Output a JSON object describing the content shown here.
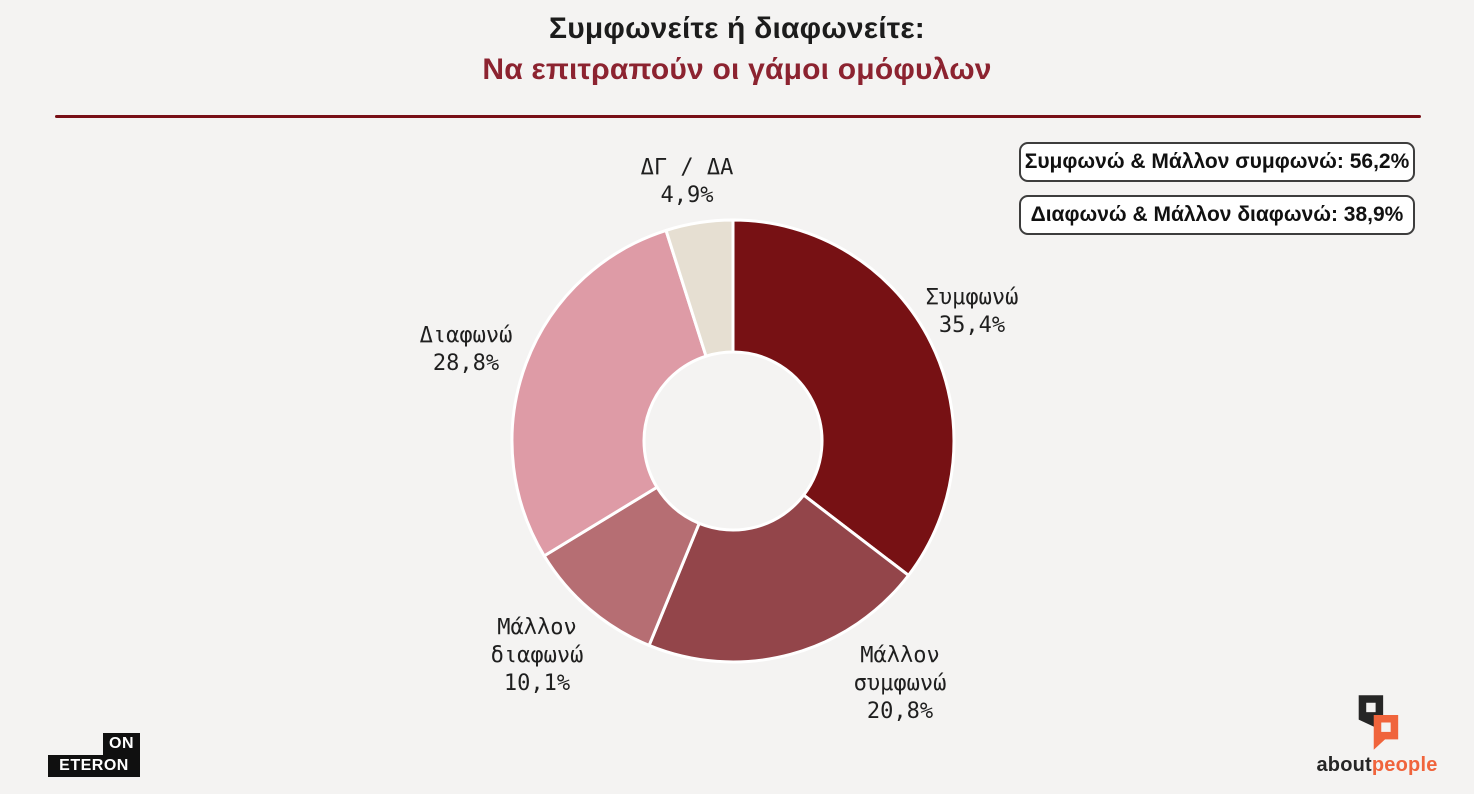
{
  "page": {
    "background_color": "#f4f3f2"
  },
  "header": {
    "title": "Συμφωνείτε ή διαφωνείτε:",
    "subtitle": "Να επιτραπούν οι γάμοι ομόφυλων",
    "title_color": "#1c1c1c",
    "subtitle_color": "#8c2330",
    "divider_color": "#780f16"
  },
  "chart_data": {
    "type": "pie",
    "subtype": "donut",
    "title": "Συμφωνείτε ή διαφωνείτε: Να επιτραπούν οι γάμοι ομόφυλων",
    "categories": [
      "Συμφωνώ",
      "Μάλλον συμφωνώ",
      "Μάλλον διαφωνώ",
      "Διαφωνώ",
      "ΔΓ / ΔΑ"
    ],
    "values": [
      35.4,
      20.8,
      10.1,
      28.8,
      4.9
    ],
    "unit": "%",
    "start_angle": "top",
    "direction": "clockwise",
    "donut_hole_ratio": 0.4,
    "slice_gap_color": "#ffffff",
    "slices": [
      {
        "name": "Συμφωνώ",
        "value": 35.4,
        "pct": "35,4%",
        "color": "#771114",
        "line1": "Συμφωνώ"
      },
      {
        "name": "Μάλλον συμφωνώ",
        "value": 20.8,
        "pct": "20,8%",
        "color": "#93454a",
        "line1": "Μάλλον",
        "line2": "συμφωνώ"
      },
      {
        "name": "Μάλλον διαφωνώ",
        "value": 10.1,
        "pct": "10,1%",
        "color": "#b66e73",
        "line1": "Μάλλον",
        "line2": "διαφωνώ"
      },
      {
        "name": "Διαφωνώ",
        "value": 28.8,
        "pct": "28,8%",
        "color": "#de9ba6",
        "line1": "Διαφωνώ"
      },
      {
        "name": "ΔΓ / ΔΑ",
        "value": 4.9,
        "pct": "4,9%",
        "color": "#e6dfd2",
        "line1": "ΔΓ / ΔΑ"
      }
    ],
    "annotations": [
      {
        "text": "Συμφωνώ & Μάλλον συμφωνώ: 56,2%"
      },
      {
        "text": "Διαφωνώ & Μάλλον διαφωνώ: 38,9%"
      }
    ]
  },
  "footer": {
    "eteron_logo": {
      "line_top": "ON",
      "line_bottom": "ETERON"
    },
    "aboutpeople_logo": {
      "word_dark": "about",
      "word_orange": "people",
      "dark_color": "#262626",
      "orange_color": "#f0643c"
    }
  }
}
